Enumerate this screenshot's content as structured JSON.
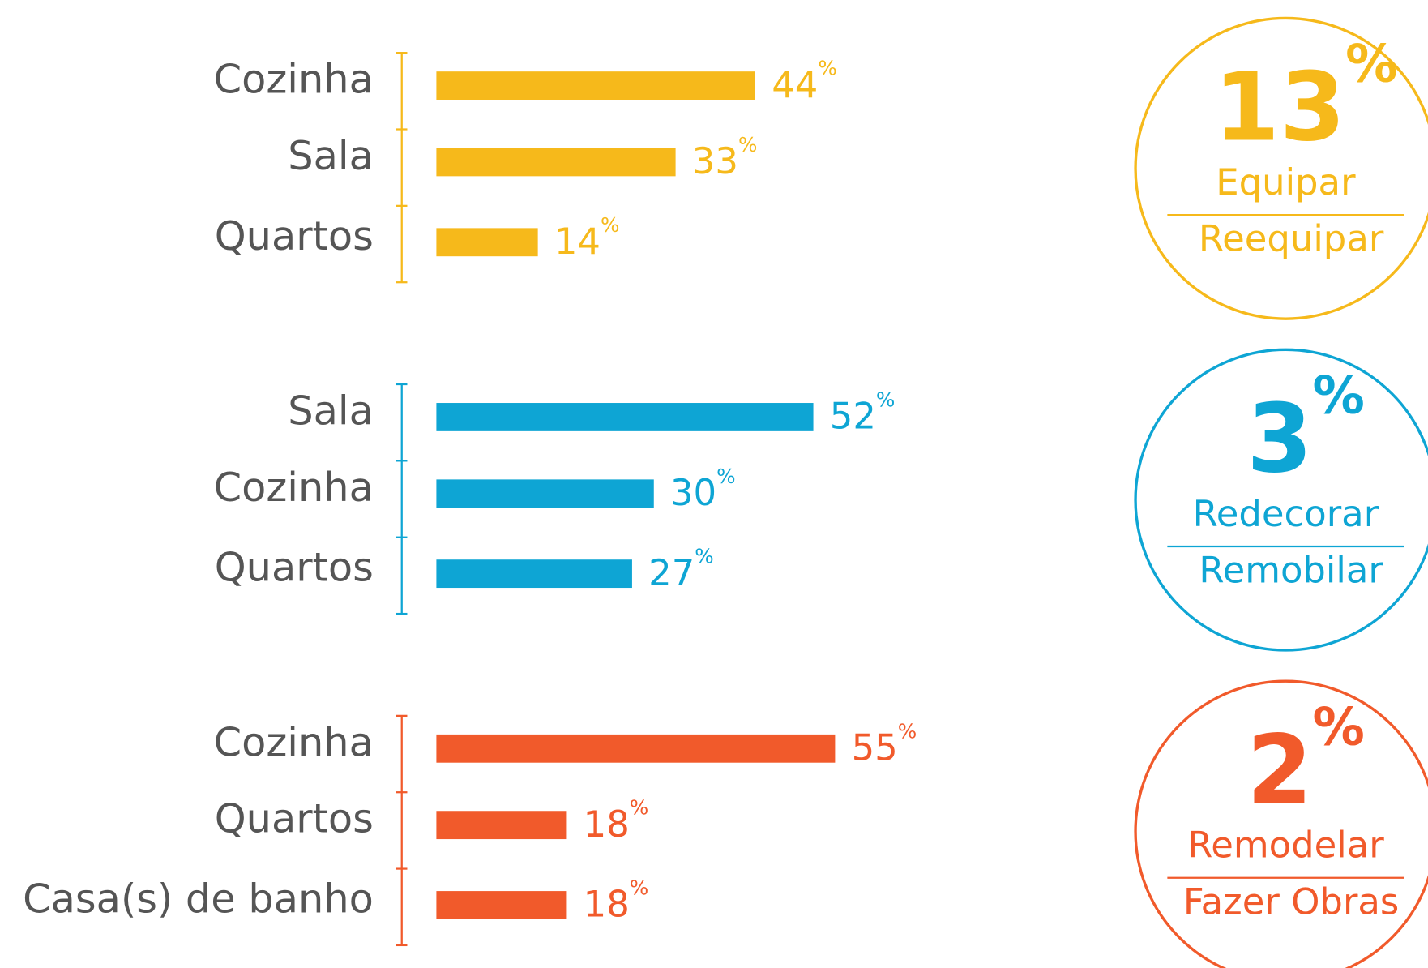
{
  "chart_data": [
    {
      "type": "bar",
      "color": "#f6b91b",
      "categories": [
        "Cozinha",
        "Sala",
        "Quartos"
      ],
      "values": [
        44,
        33,
        14
      ],
      "value_labels": [
        "44%",
        "33%",
        "14%"
      ],
      "callout": "13%",
      "callout_lines": [
        "Equipar",
        "Reequipar"
      ]
    },
    {
      "type": "bar",
      "color": "#0ea5d4",
      "categories": [
        "Sala",
        "Cozinha",
        "Quartos"
      ],
      "values": [
        52,
        30,
        27
      ],
      "value_labels": [
        "52%",
        "30%",
        "27%"
      ],
      "callout": "3%",
      "callout_lines": [
        "Redecorar",
        "Remobilar"
      ]
    },
    {
      "type": "bar",
      "color": "#f15a2b",
      "categories": [
        "Cozinha",
        "Quartos",
        "Casa(s) de banho"
      ],
      "values": [
        55,
        18,
        18
      ],
      "value_labels": [
        "55%",
        "18%",
        "18%"
      ],
      "callout": "2%",
      "callout_lines": [
        "Remodelar",
        "Fazer Obras"
      ]
    }
  ]
}
